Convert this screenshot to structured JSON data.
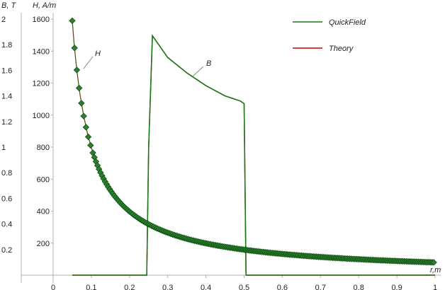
{
  "chart_data": {
    "type": "line",
    "title": "",
    "xlabel": "r,m",
    "ylabel_left": "B, T",
    "ylabel_right": "H, A/m",
    "xlim": [
      0,
      1
    ],
    "ylim_B": [
      0,
      2
    ],
    "ylim_H": [
      0,
      1600
    ],
    "x_ticks": [
      "0",
      "0.1",
      "0.2",
      "0.3",
      "0.4",
      "0.5",
      "0.6",
      "0.7",
      "0.8",
      "0.9",
      "1"
    ],
    "yB_ticks": [
      "0.2",
      "0.4",
      "0.6",
      "0.8",
      "1",
      "1.2",
      "1.4",
      "1.6",
      "1.8",
      "2"
    ],
    "yH_ticks": [
      "200",
      "400",
      "600",
      "800",
      "1000",
      "1200",
      "1400",
      "1600"
    ],
    "grid": false,
    "legend_placement": "top-right",
    "legend": [
      "QuickField",
      "Theory"
    ],
    "annotations": [
      "H",
      "B"
    ],
    "colors": {
      "quickfield": "#1a7a1a",
      "theory": "#c00000",
      "marker_fill": "#2e7d32",
      "marker_edge": "#0b4d0b"
    },
    "series": [
      {
        "name": "H",
        "axis": "H",
        "x": [
          0.05,
          0.055,
          0.06,
          0.065,
          0.07,
          0.08,
          0.09,
          0.1,
          0.12,
          0.15,
          0.2,
          0.25,
          0.3,
          0.35,
          0.4,
          0.45,
          0.5,
          0.6,
          0.7,
          0.8,
          0.9,
          1.0
        ],
        "values": [
          1590,
          1445,
          1325,
          1225,
          1135,
          995,
          885,
          795,
          665,
          530,
          400,
          318,
          265,
          227,
          199,
          177,
          159,
          133,
          114,
          100,
          88,
          80
        ]
      },
      {
        "name": "B",
        "axis": "B",
        "x": [
          0.05,
          0.245,
          0.25,
          0.26,
          0.3,
          0.35,
          0.4,
          0.45,
          0.49,
          0.5,
          0.505,
          0.6,
          0.7,
          0.8,
          0.9,
          1.0
        ],
        "values": [
          0,
          0,
          1.0,
          1.87,
          1.7,
          1.58,
          1.48,
          1.4,
          1.36,
          1.34,
          0,
          0,
          0,
          0,
          0,
          0
        ]
      }
    ]
  }
}
